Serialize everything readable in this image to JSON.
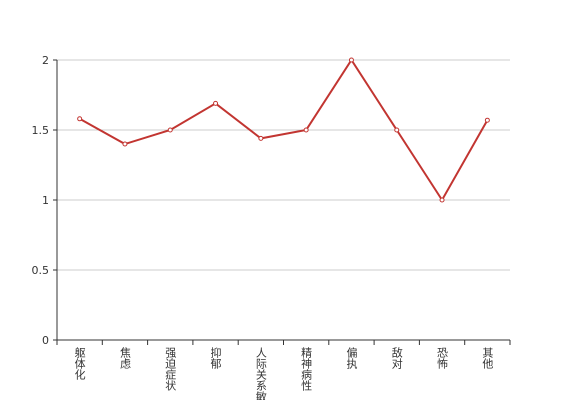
{
  "chart_data": {
    "type": "line",
    "categories": [
      "躯体化",
      "焦虑",
      "强迫症状",
      "抑郁",
      "人际关系敏感",
      "精神病性",
      "偏执",
      "敌对",
      "恐怖",
      "其他"
    ],
    "series": [
      {
        "color": "#c23531",
        "values": [
          1.58,
          1.4,
          1.5,
          1.69,
          1.44,
          1.5,
          2,
          1.5,
          1,
          1.57
        ]
      }
    ],
    "ylim": [
      0,
      2
    ],
    "yticks": [
      0,
      0.5,
      1,
      1.5,
      2
    ],
    "grid": true
  }
}
